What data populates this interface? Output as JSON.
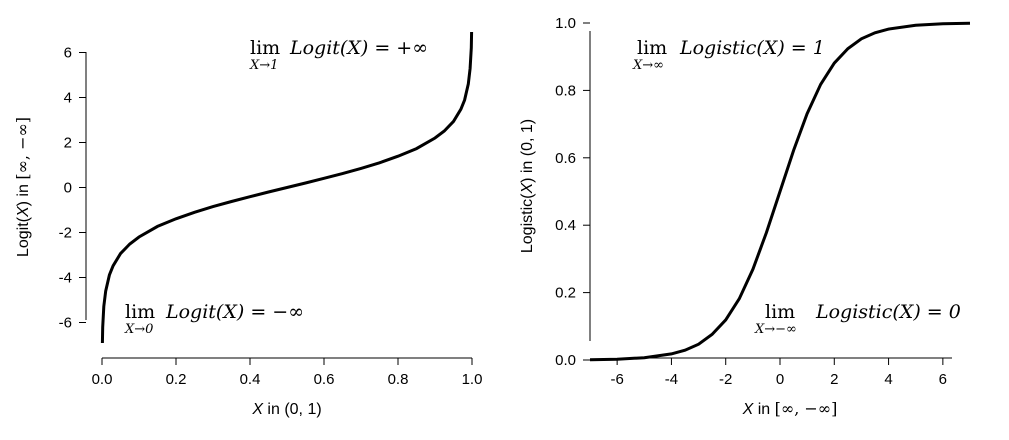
{
  "chart_data": [
    {
      "type": "line",
      "xlabel": {
        "var": "X",
        "rest": " in (0, 1)"
      },
      "ylabel": {
        "pre": "Logit(",
        "var": "X",
        "mid": ") in ",
        "interval": "[∞, −∞]"
      },
      "xlim": [
        0,
        1
      ],
      "ylim": [
        -7,
        7
      ],
      "xticks": [
        0.0,
        0.2,
        0.4,
        0.6,
        0.8,
        1.0
      ],
      "xtick_labels": [
        "0.0",
        "0.2",
        "0.4",
        "0.6",
        "0.8",
        "1.0"
      ],
      "yticks": [
        -6,
        -4,
        -2,
        0,
        2,
        4,
        6
      ],
      "ytick_labels": [
        "-6",
        "-4",
        "-2",
        "0",
        "2",
        "4",
        "6"
      ],
      "series": [
        {
          "x": [
            0.001,
            0.002,
            0.005,
            0.01,
            0.02,
            0.03,
            0.05,
            0.075,
            0.1,
            0.15,
            0.2,
            0.25,
            0.3,
            0.35,
            0.4,
            0.45,
            0.5,
            0.55,
            0.6,
            0.65,
            0.7,
            0.75,
            0.8,
            0.85,
            0.9,
            0.925,
            0.95,
            0.97,
            0.98,
            0.99,
            0.995,
            0.998,
            0.999
          ],
          "y": [
            -6.91,
            -6.21,
            -5.29,
            -4.6,
            -3.89,
            -3.48,
            -2.94,
            -2.51,
            -2.2,
            -1.73,
            -1.39,
            -1.1,
            -0.85,
            -0.62,
            -0.41,
            -0.2,
            0.0,
            0.2,
            0.41,
            0.62,
            0.85,
            1.1,
            1.39,
            1.73,
            2.2,
            2.51,
            2.94,
            3.48,
            3.89,
            4.6,
            5.29,
            6.21,
            6.91
          ]
        }
      ],
      "annotations": [
        {
          "lim": "lim",
          "sub": "X→1",
          "expr": "Logit(X) = +∞"
        },
        {
          "lim": "lim",
          "sub": "X→0",
          "expr": "Logit(X) = −∞"
        }
      ]
    },
    {
      "type": "line",
      "xlabel": {
        "var": "X",
        "rest": " in ",
        "interval": "[∞, −∞]"
      },
      "ylabel": {
        "pre": "Logistic(",
        "var": "X",
        "mid": ") in (0, 1)"
      },
      "xlim": [
        -7,
        7
      ],
      "ylim": [
        0,
        1
      ],
      "xticks": [
        -6,
        -4,
        -2,
        0,
        2,
        4,
        6
      ],
      "xtick_labels": [
        "-6",
        "-4",
        "-2",
        "0",
        "2",
        "4",
        "6"
      ],
      "yticks": [
        0.0,
        0.2,
        0.4,
        0.6,
        0.8,
        1.0
      ],
      "ytick_labels": [
        "0.0",
        "0.2",
        "0.4",
        "0.6",
        "0.8",
        "1.0"
      ],
      "series": [
        {
          "x": [
            -7,
            -6,
            -5,
            -4,
            -3.5,
            -3,
            -2.5,
            -2,
            -1.5,
            -1,
            -0.5,
            0,
            0.5,
            1,
            1.5,
            2,
            2.5,
            3,
            3.5,
            4,
            5,
            6,
            7
          ],
          "y": [
            0.0009,
            0.0025,
            0.0067,
            0.018,
            0.029,
            0.047,
            0.076,
            0.119,
            0.182,
            0.269,
            0.378,
            0.5,
            0.622,
            0.731,
            0.818,
            0.881,
            0.924,
            0.953,
            0.971,
            0.982,
            0.9933,
            0.9975,
            0.9991
          ]
        }
      ],
      "annotations": [
        {
          "lim": "lim",
          "sub": "X→∞",
          "expr": "Logistic(X) = 1"
        },
        {
          "lim": "lim",
          "sub": "X→−∞",
          "expr": "Logistic(X) = 0"
        }
      ]
    }
  ]
}
